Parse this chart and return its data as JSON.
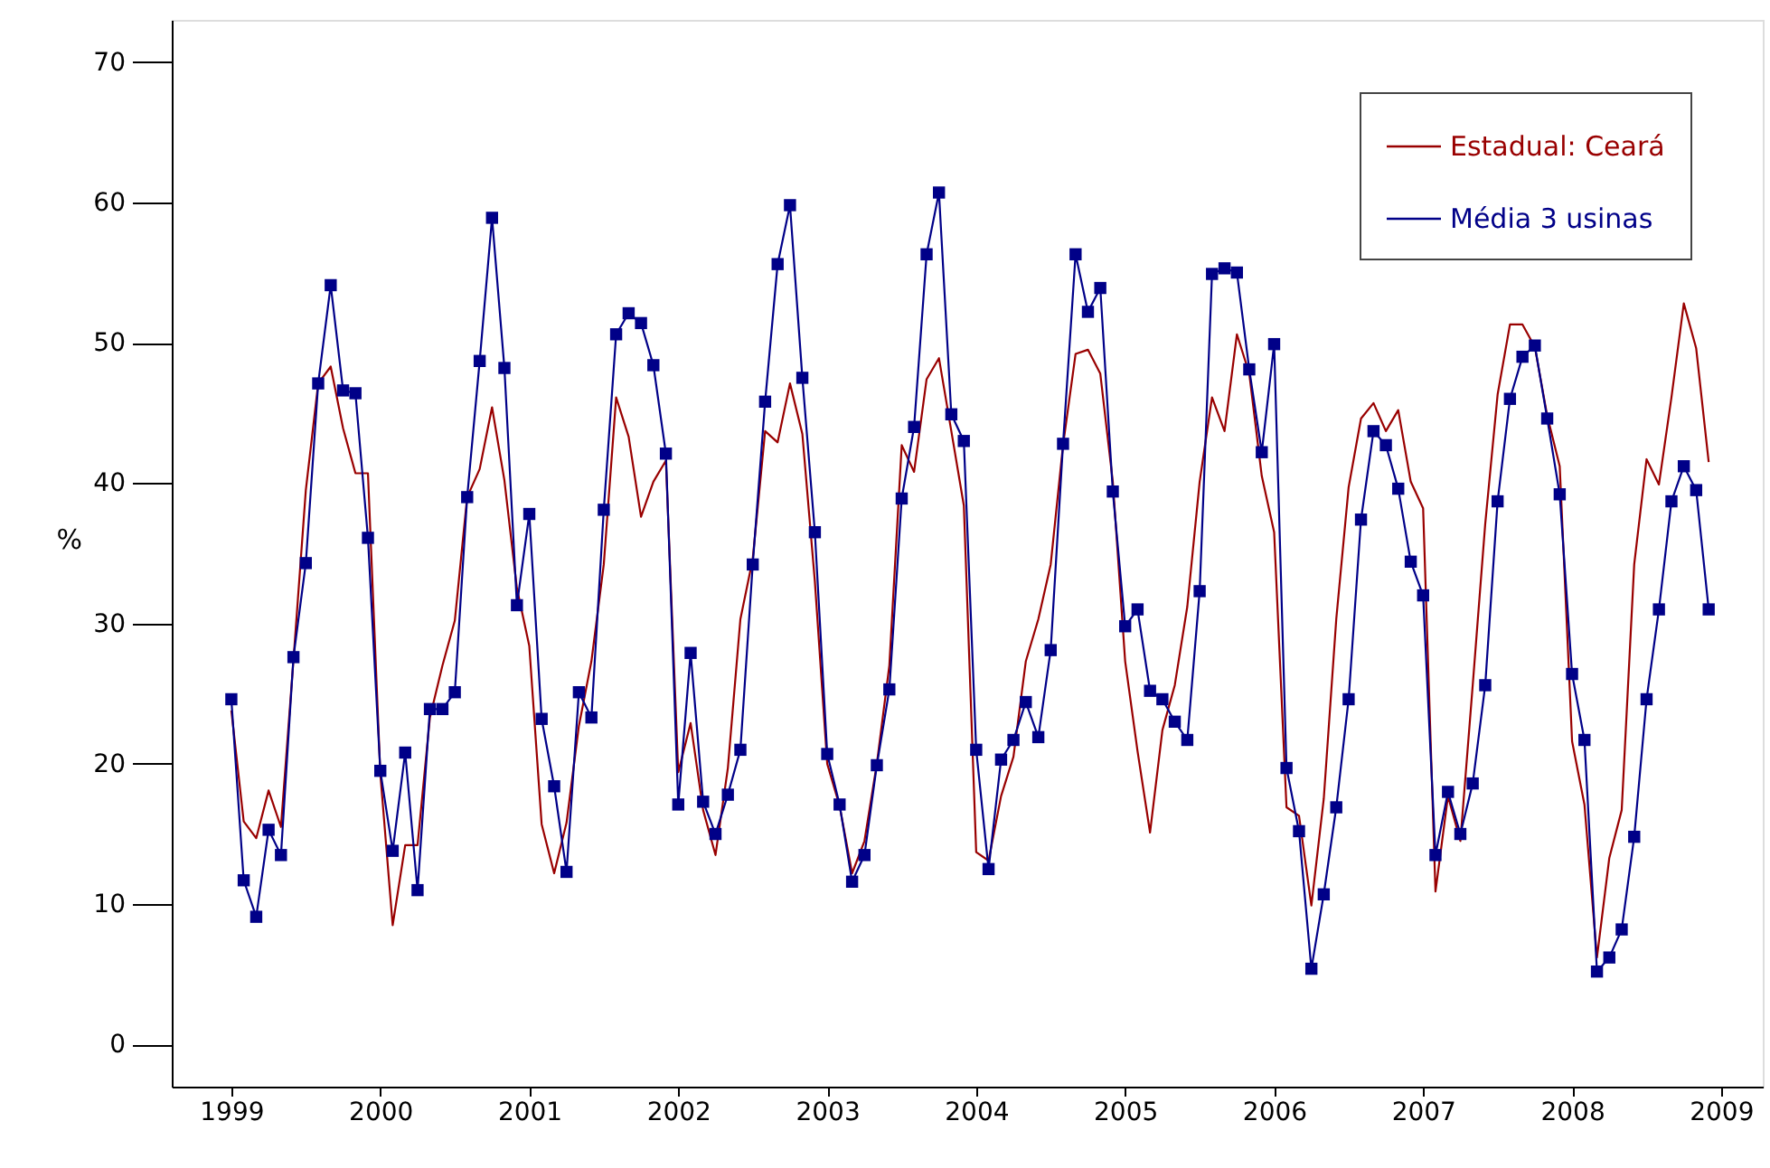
{
  "chart_data": {
    "type": "line",
    "ylabel": "%",
    "x": [
      1999.0,
      1999.083,
      1999.167,
      1999.25,
      1999.333,
      1999.417,
      1999.5,
      1999.583,
      1999.667,
      1999.75,
      1999.833,
      1999.917,
      2000.0,
      2000.083,
      2000.167,
      2000.25,
      2000.333,
      2000.417,
      2000.5,
      2000.583,
      2000.667,
      2000.75,
      2000.833,
      2000.917,
      2001.0,
      2001.083,
      2001.167,
      2001.25,
      2001.333,
      2001.417,
      2001.5,
      2001.583,
      2001.667,
      2001.75,
      2001.833,
      2001.917,
      2002.0,
      2002.083,
      2002.167,
      2002.25,
      2002.333,
      2002.417,
      2002.5,
      2002.583,
      2002.667,
      2002.75,
      2002.833,
      2002.917,
      2003.0,
      2003.083,
      2003.167,
      2003.25,
      2003.333,
      2003.417,
      2003.5,
      2003.583,
      2003.667,
      2003.75,
      2003.833,
      2003.917,
      2004.0,
      2004.083,
      2004.167,
      2004.25,
      2004.333,
      2004.417,
      2004.5,
      2004.583,
      2004.667,
      2004.75,
      2004.833,
      2004.917,
      2005.0,
      2005.083,
      2005.167,
      2005.25,
      2005.333,
      2005.417,
      2005.5,
      2005.583,
      2005.667,
      2005.75,
      2005.833,
      2005.917,
      2006.0,
      2006.083,
      2006.167,
      2006.25,
      2006.333,
      2006.417,
      2006.5,
      2006.583,
      2006.667,
      2006.75,
      2006.833,
      2006.917,
      2007.0,
      2007.083,
      2007.167,
      2007.25,
      2007.333,
      2007.417,
      2007.5,
      2007.583,
      2007.667,
      2007.75,
      2007.833,
      2007.917,
      2008.0,
      2008.083,
      2008.167,
      2008.25,
      2008.333,
      2008.417,
      2008.5,
      2008.583,
      2008.667,
      2008.75,
      2008.833,
      2008.917
    ],
    "xlim": [
      1998.6,
      2009.28
    ],
    "xticks": [
      1999,
      2000,
      2001,
      2002,
      2003,
      2004,
      2005,
      2006,
      2007,
      2008,
      2009
    ],
    "ylim": [
      -3,
      73
    ],
    "yticks": [
      0,
      10,
      20,
      30,
      40,
      50,
      60,
      70
    ],
    "grid": false,
    "legend": "top right",
    "line_style": "solid",
    "series": [
      {
        "name": "Estadual: Ceará",
        "color": "#990000",
        "marker": "none",
        "values": [
          23.8,
          15.9,
          14.7,
          18.1,
          15.5,
          27.4,
          39.5,
          47.1,
          48.3,
          43.9,
          40.7,
          40.7,
          19.3,
          8.5,
          14.2,
          14.2,
          23.3,
          27.0,
          30.2,
          39.0,
          41.0,
          45.4,
          40.2,
          32.5,
          28.4,
          15.7,
          12.2,
          15.8,
          22.7,
          27.3,
          34.2,
          46.1,
          43.3,
          37.6,
          40.1,
          41.6,
          19.4,
          22.9,
          16.7,
          13.5,
          19.7,
          30.3,
          34.6,
          43.7,
          42.9,
          47.1,
          43.5,
          33.0,
          20.0,
          17.0,
          12.2,
          14.5,
          20.0,
          27.0,
          42.7,
          40.8,
          47.4,
          48.9,
          43.7,
          38.4,
          13.7,
          13.1,
          17.7,
          20.5,
          27.3,
          30.3,
          34.2,
          42.7,
          49.2,
          49.5,
          47.8,
          40.1,
          27.3,
          20.9,
          15.1,
          22.4,
          25.6,
          31.2,
          40.1,
          46.1,
          43.7,
          50.6,
          47.8,
          40.5,
          36.5,
          16.9,
          16.3,
          9.9,
          17.5,
          30.3,
          39.7,
          44.6,
          45.7,
          43.7,
          45.2,
          40.1,
          38.2,
          10.9,
          17.7,
          14.5,
          25.6,
          37.1,
          46.3,
          51.3,
          51.3,
          49.7,
          44.8,
          41.2,
          21.6,
          17.1,
          6.2,
          13.3,
          16.7,
          34.2,
          41.7,
          39.9,
          46.1,
          52.8,
          49.6,
          41.5
        ]
      },
      {
        "name": "Média 3 usinas",
        "color": "#000088",
        "marker": "square",
        "values": [
          24.6,
          11.7,
          9.1,
          15.3,
          13.5,
          27.6,
          34.3,
          47.1,
          54.1,
          46.6,
          46.4,
          36.1,
          19.5,
          13.8,
          20.8,
          11.0,
          23.9,
          23.9,
          25.1,
          39.0,
          48.7,
          58.9,
          48.2,
          31.3,
          37.8,
          23.2,
          18.4,
          12.3,
          25.1,
          23.3,
          38.1,
          50.6,
          52.1,
          51.4,
          48.4,
          42.1,
          17.1,
          27.9,
          17.3,
          15.0,
          17.8,
          21.0,
          34.2,
          45.8,
          55.6,
          59.8,
          47.5,
          36.5,
          20.7,
          17.1,
          11.6,
          13.5,
          19.9,
          25.3,
          38.9,
          44.0,
          56.3,
          60.7,
          44.9,
          43.0,
          21.0,
          12.5,
          20.3,
          21.7,
          24.4,
          21.9,
          28.1,
          42.8,
          56.3,
          52.2,
          53.9,
          39.4,
          29.8,
          31.0,
          25.2,
          24.6,
          23.0,
          21.7,
          32.3,
          54.9,
          55.3,
          55.0,
          48.1,
          42.2,
          49.9,
          19.7,
          15.2,
          5.4,
          10.7,
          16.9,
          24.6,
          37.4,
          43.7,
          42.7,
          39.6,
          34.4,
          32.0,
          13.5,
          18.0,
          15.0,
          18.6,
          25.6,
          38.7,
          46.0,
          49.0,
          49.8,
          44.6,
          39.2,
          26.4,
          21.7,
          5.2,
          6.2,
          8.2,
          14.8,
          24.6,
          31.0,
          38.7,
          41.2,
          39.5,
          31.0
        ]
      }
    ]
  }
}
